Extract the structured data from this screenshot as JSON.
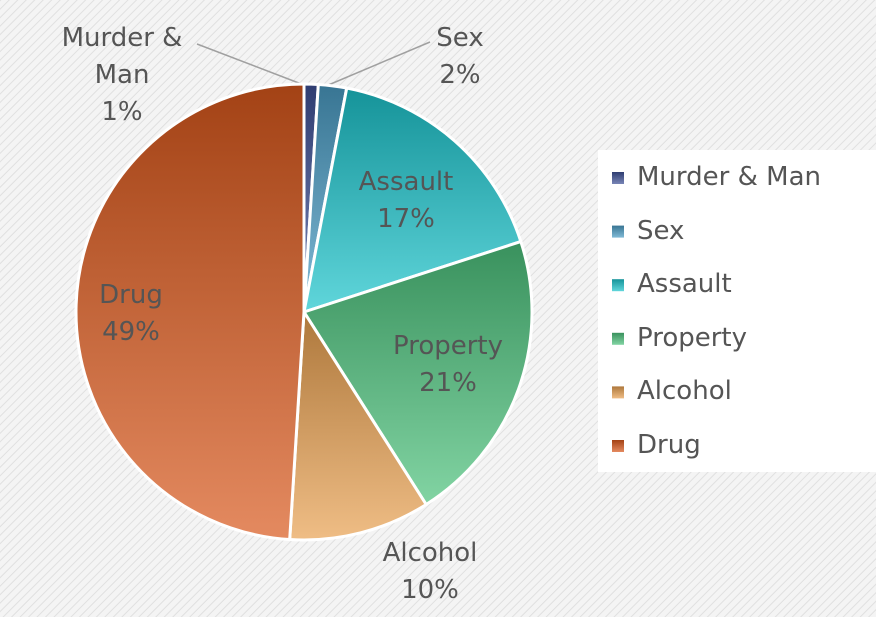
{
  "chart_data": {
    "type": "pie",
    "categories": [
      "Murder & Man",
      "Sex",
      "Assault",
      "Property",
      "Alcohol",
      "Drug"
    ],
    "values": [
      1,
      2,
      17,
      21,
      10,
      49
    ],
    "value_labels": [
      "1%",
      "2%",
      "17%",
      "21%",
      "10%",
      "49%"
    ],
    "colors": [
      "#3e5196",
      "#4a9cc4",
      "#1cc4cc",
      "#4cc17c",
      "#e8a050",
      "#d9581c"
    ],
    "legend": "right"
  }
}
